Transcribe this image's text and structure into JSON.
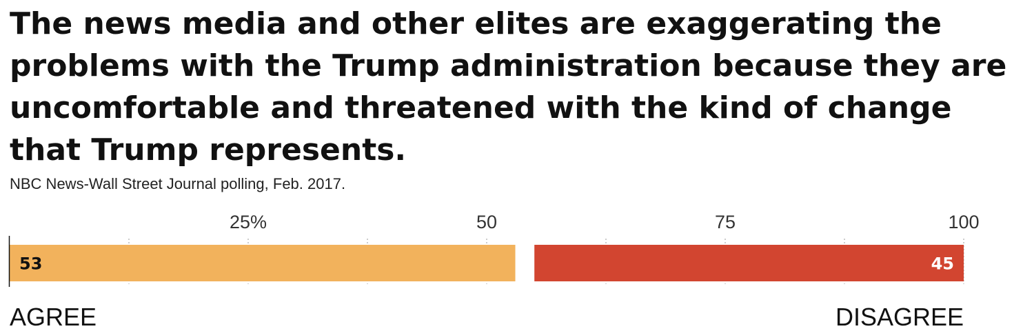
{
  "chart_data": {
    "type": "bar",
    "orientation": "horizontal-stacked",
    "title": "The news media and other elites are exaggerating the problems with the Trump administration because they are uncomfortable and threatened with the kind of change that Trump represents.",
    "subtitle": "NBC News-Wall Street Journal polling, Feb. 2017.",
    "xlim": [
      0,
      100
    ],
    "ticks": [
      {
        "value": 25,
        "label": "25%"
      },
      {
        "value": 50,
        "label": "50"
      },
      {
        "value": 75,
        "label": "75"
      },
      {
        "value": 100,
        "label": "100"
      }
    ],
    "grid": true,
    "series": [
      {
        "name": "AGREE",
        "value": 53,
        "label": "53",
        "color": "#f2b25c",
        "label_color": "#111111"
      },
      {
        "name": "DISAGREE",
        "value": 45,
        "label": "45",
        "color": "#d24530",
        "label_color": "#ffffff"
      }
    ]
  }
}
